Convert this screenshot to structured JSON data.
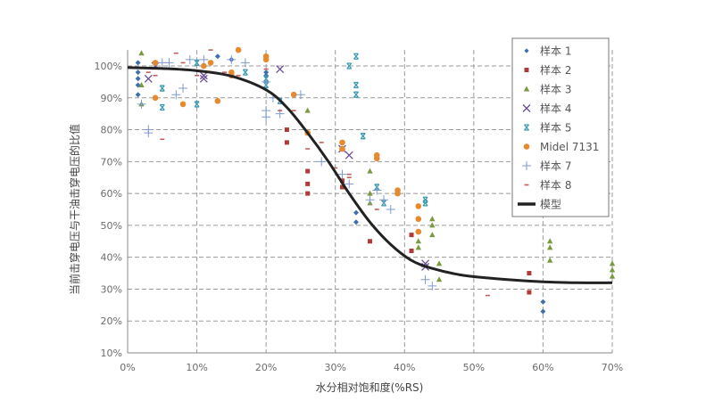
{
  "chart_data": {
    "type": "scatter",
    "title": "",
    "xlabel": "水分相对饱和度(%RS)",
    "ylabel": "当前击穿电压与干油击穿电压的比值",
    "xlim": [
      0,
      70
    ],
    "ylim": [
      10,
      105
    ],
    "x_ticks": [
      "0%",
      "10%",
      "20%",
      "30%",
      "40%",
      "50%",
      "60%",
      "70%"
    ],
    "y_ticks": [
      "10%",
      "20%",
      "30%",
      "40%",
      "50%",
      "60%",
      "70%",
      "80%",
      "90%",
      "100%"
    ],
    "grid": true,
    "legend_position": "upper right",
    "series": [
      {
        "name": "样本 1",
        "marker": "diamond",
        "color": "#3f6fb0",
        "points": [
          [
            1.5,
            101
          ],
          [
            1.5,
            98
          ],
          [
            1.5,
            96
          ],
          [
            1.5,
            94
          ],
          [
            1.5,
            91
          ],
          [
            13,
            103
          ],
          [
            15,
            102
          ],
          [
            20,
            103
          ],
          [
            20,
            98
          ],
          [
            20,
            97
          ],
          [
            33,
            54
          ],
          [
            33,
            51
          ],
          [
            60,
            26
          ],
          [
            60,
            23
          ]
        ]
      },
      {
        "name": "样本 2",
        "marker": "square",
        "color": "#b03a3a",
        "points": [
          [
            4,
            101
          ],
          [
            23,
            80
          ],
          [
            23,
            76
          ],
          [
            26,
            67
          ],
          [
            26,
            63
          ],
          [
            26,
            60
          ],
          [
            31,
            64
          ],
          [
            31,
            62
          ],
          [
            35,
            45
          ],
          [
            41,
            47
          ],
          [
            41,
            42
          ],
          [
            58,
            35
          ],
          [
            58,
            29
          ]
        ]
      },
      {
        "name": "样本 3",
        "marker": "triangle",
        "color": "#7a9a3f",
        "points": [
          [
            2,
            104
          ],
          [
            2,
            94
          ],
          [
            2,
            88
          ],
          [
            26,
            86
          ],
          [
            26,
            79
          ],
          [
            35,
            67
          ],
          [
            35,
            60
          ],
          [
            35,
            57
          ],
          [
            42,
            45
          ],
          [
            42,
            43
          ],
          [
            44,
            52
          ],
          [
            44,
            50
          ],
          [
            44,
            47
          ],
          [
            45,
            38
          ],
          [
            45,
            33
          ],
          [
            61,
            45
          ],
          [
            61,
            43
          ],
          [
            61,
            39
          ],
          [
            70,
            38
          ],
          [
            70,
            36
          ],
          [
            70,
            34
          ]
        ]
      },
      {
        "name": "样本 4",
        "marker": "x",
        "color": "#6a4c93",
        "points": [
          [
            3,
            96
          ],
          [
            4,
            100
          ],
          [
            11,
            97
          ],
          [
            11,
            96
          ],
          [
            22,
            99
          ],
          [
            31,
            74
          ],
          [
            32,
            72
          ],
          [
            43,
            38
          ],
          [
            43,
            37
          ]
        ]
      },
      {
        "name": "样本 5",
        "marker": "star-x",
        "color": "#3a9ab0",
        "points": [
          [
            5,
            93
          ],
          [
            5,
            87
          ],
          [
            10,
            101
          ],
          [
            10,
            88
          ],
          [
            17,
            98
          ],
          [
            20,
            96
          ],
          [
            20,
            94
          ],
          [
            22,
            89
          ],
          [
            32,
            100
          ],
          [
            33,
            103
          ],
          [
            33,
            94
          ],
          [
            33,
            91
          ],
          [
            34,
            78
          ],
          [
            36,
            62
          ],
          [
            37,
            57
          ],
          [
            43,
            58
          ],
          [
            43,
            57
          ]
        ]
      },
      {
        "name": "Midel 7131",
        "marker": "circle",
        "color": "#e68a2e",
        "points": [
          [
            4,
            101
          ],
          [
            4,
            90
          ],
          [
            8,
            88
          ],
          [
            11,
            100
          ],
          [
            12,
            101
          ],
          [
            13,
            89
          ],
          [
            15,
            98
          ],
          [
            15,
            97
          ],
          [
            16,
            105
          ],
          [
            20,
            103
          ],
          [
            20,
            102
          ],
          [
            24,
            91
          ],
          [
            26,
            79
          ],
          [
            31,
            76
          ],
          [
            31,
            74
          ],
          [
            36,
            72
          ],
          [
            36,
            71
          ],
          [
            39,
            61
          ],
          [
            39,
            60
          ],
          [
            42,
            56
          ],
          [
            42,
            52
          ],
          [
            42,
            48
          ]
        ]
      },
      {
        "name": "样本 7",
        "marker": "plus",
        "color": "#7f9ad0",
        "points": [
          [
            2,
            88
          ],
          [
            3,
            79
          ],
          [
            3,
            80
          ],
          [
            5,
            101
          ],
          [
            6,
            101
          ],
          [
            7,
            91
          ],
          [
            8,
            93
          ],
          [
            9,
            102
          ],
          [
            11,
            102
          ],
          [
            15,
            102
          ],
          [
            17,
            101
          ],
          [
            20,
            95
          ],
          [
            20,
            86
          ],
          [
            20,
            84
          ],
          [
            21,
            90
          ],
          [
            22,
            85
          ],
          [
            25,
            91
          ],
          [
            28,
            70
          ],
          [
            31,
            66
          ],
          [
            32,
            63
          ],
          [
            35,
            58
          ],
          [
            36,
            61
          ],
          [
            37,
            58
          ],
          [
            38,
            55
          ],
          [
            43,
            33
          ],
          [
            44,
            31
          ]
        ]
      },
      {
        "name": "样本 8",
        "marker": "dash",
        "color": "#c0605a",
        "points": [
          [
            3,
            98
          ],
          [
            4,
            97
          ],
          [
            5,
            77
          ],
          [
            7,
            104
          ],
          [
            8,
            101
          ],
          [
            10,
            97
          ],
          [
            12,
            105
          ],
          [
            14,
            98
          ],
          [
            16,
            97
          ],
          [
            20,
            99
          ],
          [
            22,
            86
          ],
          [
            24,
            86
          ],
          [
            26,
            74
          ],
          [
            28,
            76
          ],
          [
            30,
            68
          ],
          [
            32,
            66
          ],
          [
            32,
            65
          ],
          [
            36,
            55
          ],
          [
            41,
            39
          ],
          [
            52,
            28
          ]
        ]
      },
      {
        "name": "模型",
        "marker": "line",
        "color": "#222222",
        "points": [
          [
            0,
            99.5
          ],
          [
            5,
            99.2
          ],
          [
            10,
            98.5
          ],
          [
            15,
            96.8
          ],
          [
            20,
            92.5
          ],
          [
            23,
            87
          ],
          [
            26,
            79
          ],
          [
            29,
            70
          ],
          [
            32,
            60
          ],
          [
            35,
            51
          ],
          [
            38,
            44
          ],
          [
            41,
            39
          ],
          [
            44,
            36.5
          ],
          [
            48,
            34.5
          ],
          [
            52,
            33.5
          ],
          [
            56,
            32.8
          ],
          [
            60,
            32.3
          ],
          [
            65,
            32
          ],
          [
            70,
            32
          ]
        ]
      }
    ]
  },
  "axes": {
    "xlabel": "水分相对饱和度(%RS)",
    "ylabel": "当前击穿电压与干油击穿电压的比值"
  },
  "legend": {
    "items": [
      "样本 1",
      "样本 2",
      "样本 3",
      "样本 4",
      "样本 5",
      "Midel 7131",
      "样本 7",
      "样本 8",
      "模型"
    ]
  }
}
